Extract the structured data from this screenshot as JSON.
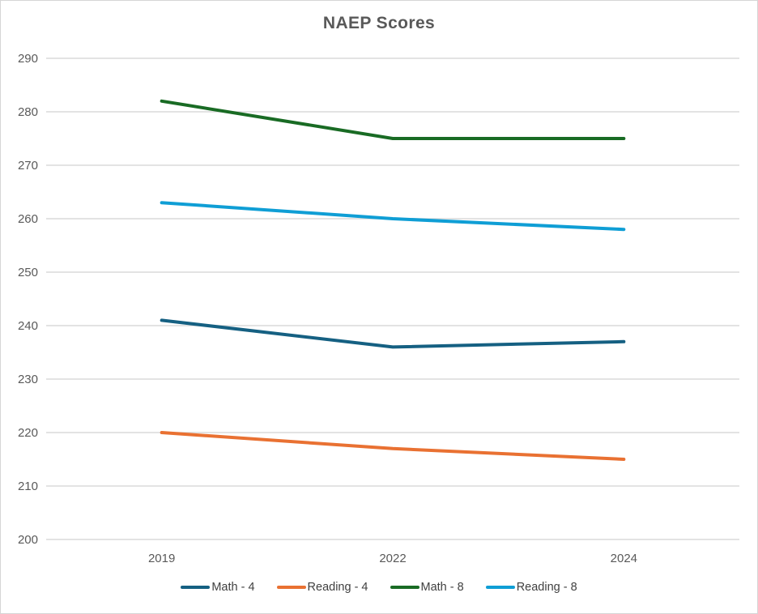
{
  "chart_data": {
    "type": "line",
    "title": "NAEP Scores",
    "categories": [
      "2019",
      "2022",
      "2024"
    ],
    "series": [
      {
        "name": "Math - 4",
        "color": "#156082",
        "values": [
          241,
          236,
          237
        ]
      },
      {
        "name": "Reading - 4",
        "color": "#E97132",
        "values": [
          220,
          217,
          215
        ]
      },
      {
        "name": "Math - 8",
        "color": "#196B24",
        "values": [
          282,
          275,
          275
        ]
      },
      {
        "name": "Reading - 8",
        "color": "#0F9ED5",
        "values": [
          263,
          260,
          258
        ]
      }
    ],
    "xlabel": "",
    "ylabel": "",
    "ylim": [
      200,
      290
    ],
    "yticks": [
      200,
      210,
      220,
      230,
      240,
      250,
      260,
      270,
      280,
      290
    ],
    "grid": true,
    "legend_position": "bottom"
  },
  "colors": {
    "title_text": "#595959",
    "axis_text": "#595959",
    "legend_text": "#404040",
    "gridline": "#DADADA",
    "border": "#D6D6D6",
    "background": "#FFFFFF"
  }
}
